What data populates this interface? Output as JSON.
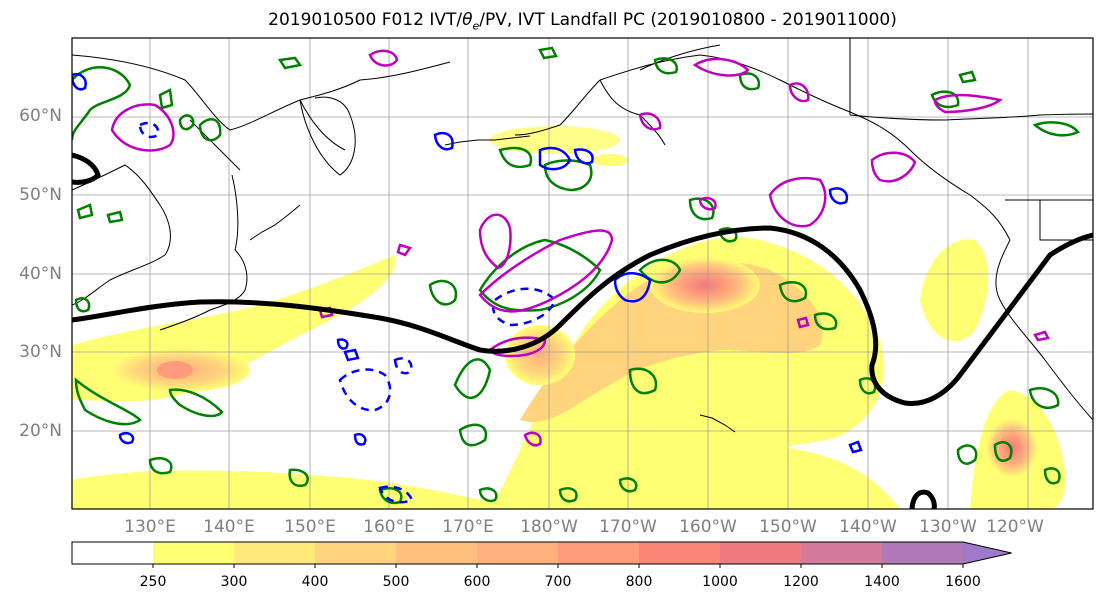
{
  "title_main": "2019010500 F012 IVT/",
  "title_theta": "θ",
  "title_theta_sub": "e",
  "title_rest": "/PV, IVT Landfall PC (2019010800 - 2019011000)",
  "lat_labels": [
    "60°N",
    "50°N",
    "40°N",
    "30°N",
    "20°N"
  ],
  "lon_labels": [
    "130°E",
    "140°E",
    "150°E",
    "160°E",
    "170°E",
    "180°W",
    "170°W",
    "160°W",
    "150°W",
    "140°W",
    "130°W",
    "120°W"
  ],
  "colorbar": {
    "levels": [
      "250",
      "300",
      "400",
      "500",
      "600",
      "700",
      "800",
      "1000",
      "1200",
      "1400",
      "1600"
    ],
    "colors": [
      "#ffffff",
      "#ffff73",
      "#ffe97a",
      "#ffd47d",
      "#ffc07f",
      "#ffb07d",
      "#ff9a7a",
      "#fb8577",
      "#ef7a80",
      "#d47a9a",
      "#b07ab8",
      "#a07ac8"
    ]
  },
  "colors": {
    "coast": "#000000",
    "grid": "#a0a0a0",
    "pc_line": "#000000",
    "theta_green": "#008000",
    "pv_blue": "#0000ff",
    "pv_magenta": "#bf00bf"
  }
}
